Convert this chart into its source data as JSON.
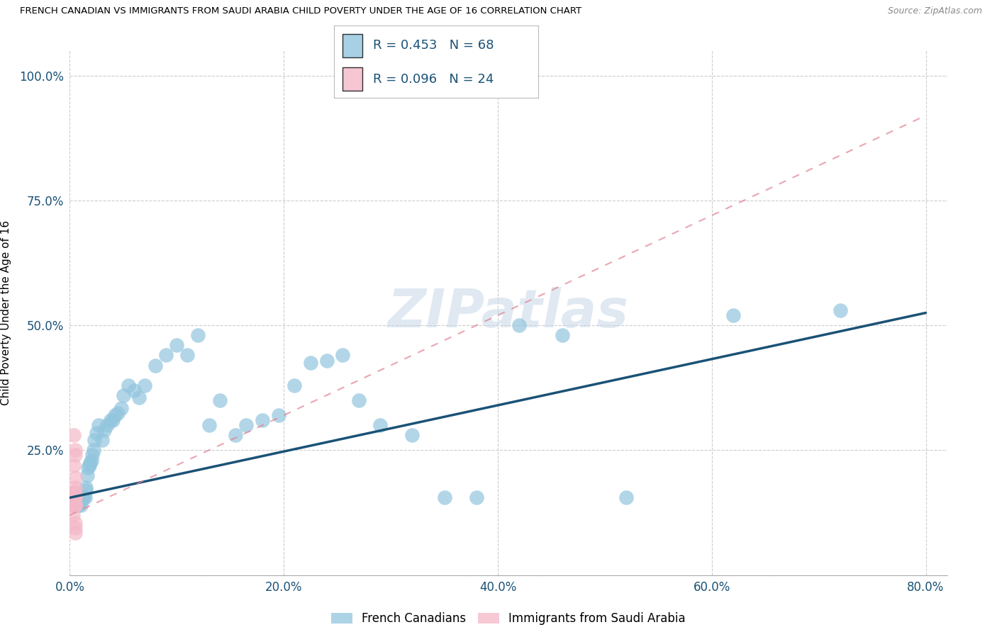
{
  "title": "FRENCH CANADIAN VS IMMIGRANTS FROM SAUDI ARABIA CHILD POVERTY UNDER THE AGE OF 16 CORRELATION CHART",
  "source": "Source: ZipAtlas.com",
  "ylabel_label": "Child Poverty Under the Age of 16",
  "legend_label1": "French Canadians",
  "legend_label2": "Immigrants from Saudi Arabia",
  "R1": 0.453,
  "N1": 68,
  "R2": 0.096,
  "N2": 24,
  "blue_color": "#92c5de",
  "pink_color": "#f4b8c8",
  "blue_line_color": "#1a5276",
  "pink_line_color": "#e08090",
  "grid_color": "#cccccc",
  "watermark": "ZIPatlas",
  "blue_x": [
    0.003,
    0.004,
    0.005,
    0.005,
    0.006,
    0.006,
    0.007,
    0.007,
    0.008,
    0.008,
    0.009,
    0.009,
    0.01,
    0.01,
    0.011,
    0.012,
    0.013,
    0.014,
    0.015,
    0.015,
    0.016,
    0.017,
    0.018,
    0.019,
    0.02,
    0.021,
    0.022,
    0.023,
    0.025,
    0.027,
    0.03,
    0.032,
    0.035,
    0.038,
    0.04,
    0.042,
    0.045,
    0.048,
    0.05,
    0.055,
    0.06,
    0.065,
    0.07,
    0.08,
    0.09,
    0.1,
    0.11,
    0.12,
    0.13,
    0.14,
    0.155,
    0.165,
    0.18,
    0.195,
    0.21,
    0.225,
    0.24,
    0.255,
    0.27,
    0.29,
    0.32,
    0.35,
    0.38,
    0.42,
    0.46,
    0.52,
    0.62,
    0.72
  ],
  "blue_y": [
    0.14,
    0.14,
    0.14,
    0.15,
    0.15,
    0.155,
    0.15,
    0.155,
    0.14,
    0.155,
    0.145,
    0.155,
    0.14,
    0.15,
    0.155,
    0.155,
    0.155,
    0.155,
    0.17,
    0.175,
    0.2,
    0.215,
    0.22,
    0.225,
    0.23,
    0.24,
    0.25,
    0.27,
    0.285,
    0.3,
    0.27,
    0.29,
    0.3,
    0.31,
    0.31,
    0.32,
    0.325,
    0.335,
    0.36,
    0.38,
    0.37,
    0.355,
    0.38,
    0.42,
    0.44,
    0.46,
    0.44,
    0.48,
    0.3,
    0.35,
    0.28,
    0.3,
    0.31,
    0.32,
    0.38,
    0.425,
    0.43,
    0.44,
    0.35,
    0.3,
    0.28,
    0.155,
    0.155,
    0.5,
    0.48,
    0.155,
    0.52,
    0.53
  ],
  "pink_x": [
    0.002,
    0.002,
    0.003,
    0.003,
    0.003,
    0.003,
    0.004,
    0.004,
    0.004,
    0.004,
    0.004,
    0.004,
    0.005,
    0.005,
    0.005,
    0.005,
    0.005,
    0.005,
    0.005,
    0.005,
    0.005,
    0.005,
    0.005,
    0.005
  ],
  "pink_y": [
    0.14,
    0.155,
    0.12,
    0.14,
    0.155,
    0.165,
    0.14,
    0.145,
    0.155,
    0.165,
    0.22,
    0.28,
    0.085,
    0.095,
    0.105,
    0.14,
    0.14,
    0.155,
    0.155,
    0.165,
    0.175,
    0.195,
    0.24,
    0.25
  ],
  "blue_line_x": [
    0.0,
    0.8
  ],
  "blue_line_y": [
    0.155,
    0.525
  ],
  "pink_line_x": [
    0.0,
    0.8
  ],
  "pink_line_y": [
    0.12,
    0.92
  ],
  "xlim": [
    0.0,
    0.82
  ],
  "ylim": [
    0.0,
    1.05
  ],
  "xticks": [
    0.0,
    0.2,
    0.4,
    0.6,
    0.8
  ],
  "yticks": [
    0.0,
    0.25,
    0.5,
    0.75,
    1.0
  ],
  "xticklabels": [
    "0.0%",
    "20.0%",
    "40.0%",
    "60.0%",
    "80.0%"
  ],
  "yticklabels": [
    "",
    "25.0%",
    "50.0%",
    "75.0%",
    "100.0%"
  ]
}
